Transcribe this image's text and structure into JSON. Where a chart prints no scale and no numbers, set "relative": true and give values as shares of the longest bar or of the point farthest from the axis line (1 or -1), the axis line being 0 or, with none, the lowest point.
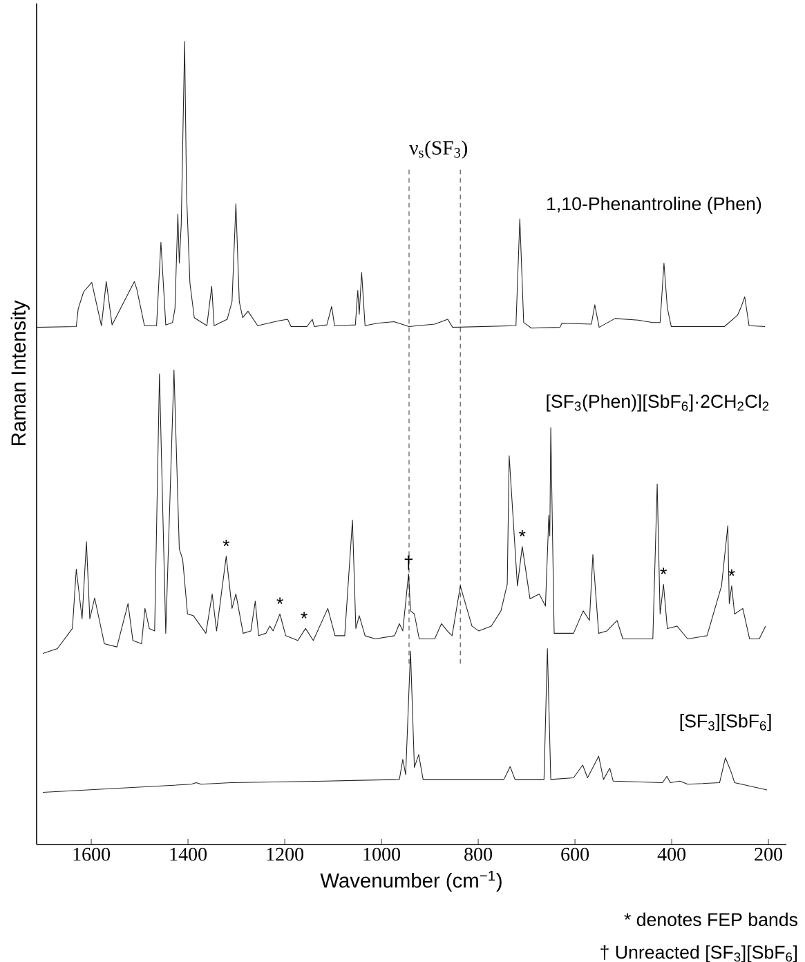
{
  "chart_data": {
    "type": "line",
    "relative": true,
    "xlabel": "Wavenumber (cm$^{−1}$)",
    "ylabel": "Raman Intensity",
    "xlim": [
      1713,
      163
    ],
    "xticks": [
      1600,
      1400,
      1200,
      1000,
      800,
      600,
      400,
      200
    ],
    "series": [
      {
        "name": "1,10-Phenantroline (Phen)",
        "color": "#222222",
        "x": [
          1713,
          1631,
          1627,
          1616,
          1599,
          1579,
          1569,
          1557,
          1511,
          1506,
          1490,
          1465,
          1456,
          1446,
          1432,
          1427,
          1421,
          1418,
          1414,
          1407,
          1403,
          1396,
          1387,
          1361,
          1351,
          1346,
          1319,
          1309,
          1301,
          1294,
          1287,
          1276,
          1256,
          1213,
          1194,
          1187,
          1154,
          1143,
          1139,
          1113,
          1103,
          1097,
          1054,
          1049,
          1046,
          1041,
          1034,
          1009,
          974,
          943,
          890,
          863,
          853,
          722,
          714,
          706,
          690,
          631,
          627,
          566,
          559,
          550,
          517,
          469,
          439,
          424,
          416,
          409,
          401,
          291,
          264,
          256,
          249,
          240,
          207
        ],
        "values": [
          0.644,
          0.645,
          0.667,
          0.688,
          0.7,
          0.646,
          0.701,
          0.647,
          0.701,
          0.692,
          0.646,
          0.646,
          0.75,
          0.647,
          0.65,
          0.667,
          0.785,
          0.724,
          0.772,
          1.0,
          0.81,
          0.699,
          0.656,
          0.646,
          0.695,
          0.646,
          0.654,
          0.676,
          0.798,
          0.676,
          0.656,
          0.664,
          0.646,
          0.652,
          0.654,
          0.645,
          0.645,
          0.654,
          0.645,
          0.647,
          0.67,
          0.646,
          0.647,
          0.69,
          0.66,
          0.712,
          0.646,
          0.649,
          0.651,
          0.645,
          0.648,
          0.654,
          0.644,
          0.646,
          0.779,
          0.65,
          0.643,
          0.644,
          0.649,
          0.648,
          0.672,
          0.644,
          0.655,
          0.653,
          0.65,
          0.65,
          0.724,
          0.668,
          0.645,
          0.645,
          0.659,
          0.67,
          0.682,
          0.646,
          0.645
        ]
      },
      {
        "name": "[SF$_{3}$(Phen)][SbF$_{6}$]·2CH$_{2}$Cl$_{2}$",
        "color": "#222222",
        "x": [
          1700,
          1670,
          1639,
          1631,
          1619,
          1610,
          1603,
          1593,
          1573,
          1547,
          1524,
          1514,
          1496,
          1489,
          1480,
          1469,
          1459,
          1446,
          1429,
          1418,
          1411,
          1401,
          1389,
          1363,
          1350,
          1341,
          1321,
          1309,
          1301,
          1286,
          1270,
          1261,
          1254,
          1239,
          1231,
          1224,
          1210,
          1198,
          1173,
          1157,
          1141,
          1111,
          1096,
          1076,
          1060,
          1053,
          1046,
          1034,
          1013,
          973,
          963,
          956,
          944,
          940,
          932,
          922,
          890,
          876,
          864,
          854,
          837,
          813,
          799,
          773,
          753,
          740,
          736,
          719,
          709,
          693,
          674,
          661,
          654,
          652,
          650,
          643,
          603,
          583,
          570,
          563,
          551,
          534,
          513,
          501,
          439,
          430,
          424,
          417,
          409,
          389,
          367,
          327,
          297,
          284,
          281,
          276,
          270,
          253,
          239,
          219,
          206
        ],
        "values": [
          0.238,
          0.244,
          0.269,
          0.343,
          0.281,
          0.377,
          0.281,
          0.307,
          0.25,
          0.246,
          0.3,
          0.254,
          0.25,
          0.294,
          0.269,
          0.266,
          0.586,
          0.263,
          0.591,
          0.368,
          0.355,
          0.287,
          0.285,
          0.263,
          0.312,
          0.266,
          0.359,
          0.294,
          0.312,
          0.263,
          0.266,
          0.303,
          0.26,
          0.263,
          0.272,
          0.266,
          0.287,
          0.26,
          0.254,
          0.269,
          0.254,
          0.294,
          0.26,
          0.26,
          0.404,
          0.269,
          0.285,
          0.26,
          0.256,
          0.26,
          0.275,
          0.266,
          0.337,
          0.291,
          0.287,
          0.256,
          0.256,
          0.275,
          0.266,
          0.26,
          0.322,
          0.272,
          0.266,
          0.272,
          0.291,
          0.324,
          0.484,
          0.322,
          0.371,
          0.306,
          0.312,
          0.297,
          0.41,
          0.384,
          0.519,
          0.263,
          0.263,
          0.291,
          0.279,
          0.361,
          0.263,
          0.266,
          0.279,
          0.256,
          0.256,
          0.449,
          0.287,
          0.324,
          0.269,
          0.272,
          0.256,
          0.26,
          0.322,
          0.397,
          0.3,
          0.322,
          0.287,
          0.294,
          0.256,
          0.256,
          0.272
        ]
      },
      {
        "name": "[SF$_{3}$][SbF$_{6}$]",
        "color": "#222222",
        "x": [
          1700,
          1393,
          1383,
          1373,
          1311,
          1116,
          963,
          956,
          950,
          940,
          932,
          923,
          914,
          747,
          734,
          724,
          664,
          657,
          650,
          603,
          584,
          574,
          551,
          541,
          528,
          521,
          419,
          410,
          403,
          383,
          367,
          301,
          289,
          277,
          270,
          203
        ],
        "values": [
          0.065,
          0.075,
          0.077,
          0.075,
          0.077,
          0.079,
          0.081,
          0.106,
          0.087,
          0.241,
          0.096,
          0.112,
          0.081,
          0.081,
          0.097,
          0.081,
          0.081,
          0.244,
          0.081,
          0.083,
          0.099,
          0.083,
          0.11,
          0.081,
          0.095,
          0.079,
          0.077,
          0.085,
          0.077,
          0.079,
          0.075,
          0.077,
          0.108,
          0.09,
          0.077,
          0.068
        ]
      }
    ],
    "ref_lines": [
      {
        "axis": "x",
        "value": 943,
        "line_style": "dashed"
      },
      {
        "axis": "x",
        "value": 837,
        "line_style": "dashed"
      }
    ],
    "annotations": [
      "ν$_{s}$(SF$_{3}$)",
      {
        "text": "*",
        "x": 1321,
        "y": 0.359
      },
      {
        "text": "*",
        "x": 1210,
        "y": 0.287
      },
      {
        "text": "*",
        "x": 1160,
        "y": 0.269
      },
      {
        "text": "†",
        "x": 944,
        "y": 0.337
      },
      {
        "text": "*",
        "x": 709,
        "y": 0.371
      },
      {
        "text": "*",
        "x": 417,
        "y": 0.324
      },
      {
        "text": "*",
        "x": 276,
        "y": 0.322
      },
      "* denotes FEP bands",
      "† Unreacted [SF$_{3}$][SbF$_{6}$]"
    ]
  }
}
